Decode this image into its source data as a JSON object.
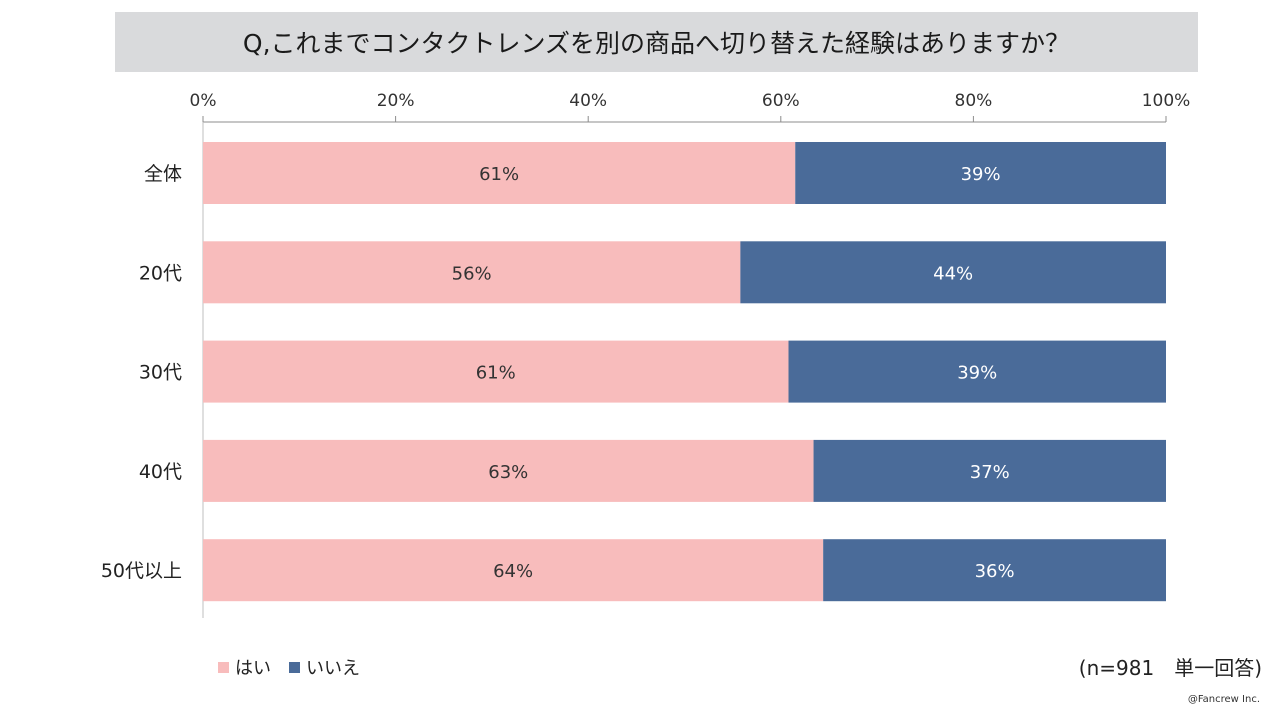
{
  "title": "Q,これまでコンタクトレンズを別の商品へ切り替えた経験はありますか？",
  "chart_data": {
    "type": "bar",
    "orientation": "horizontal",
    "stacked": true,
    "categories": [
      "全体",
      "20代",
      "30代",
      "40代",
      "50代以上"
    ],
    "series": [
      {
        "name": "はい",
        "values": [
          61.5,
          55.8,
          60.8,
          63.4,
          64.4
        ],
        "labels": [
          "61%",
          "56%",
          "61%",
          "63%",
          "64%"
        ],
        "color": "#f8bcbc"
      },
      {
        "name": "いいえ",
        "values": [
          38.5,
          44.2,
          39.2,
          36.6,
          35.6
        ],
        "labels": [
          "39%",
          "44%",
          "39%",
          "37%",
          "36%"
        ],
        "color": "#4a6b99"
      }
    ],
    "xlim": [
      0,
      100
    ],
    "xticks": [
      "0%",
      "20%",
      "40%",
      "60%",
      "80%",
      "100%"
    ],
    "legend_position": "bottom-left"
  },
  "footnote": "(n=981　単一回答)",
  "credit": "@Fancrew Inc."
}
